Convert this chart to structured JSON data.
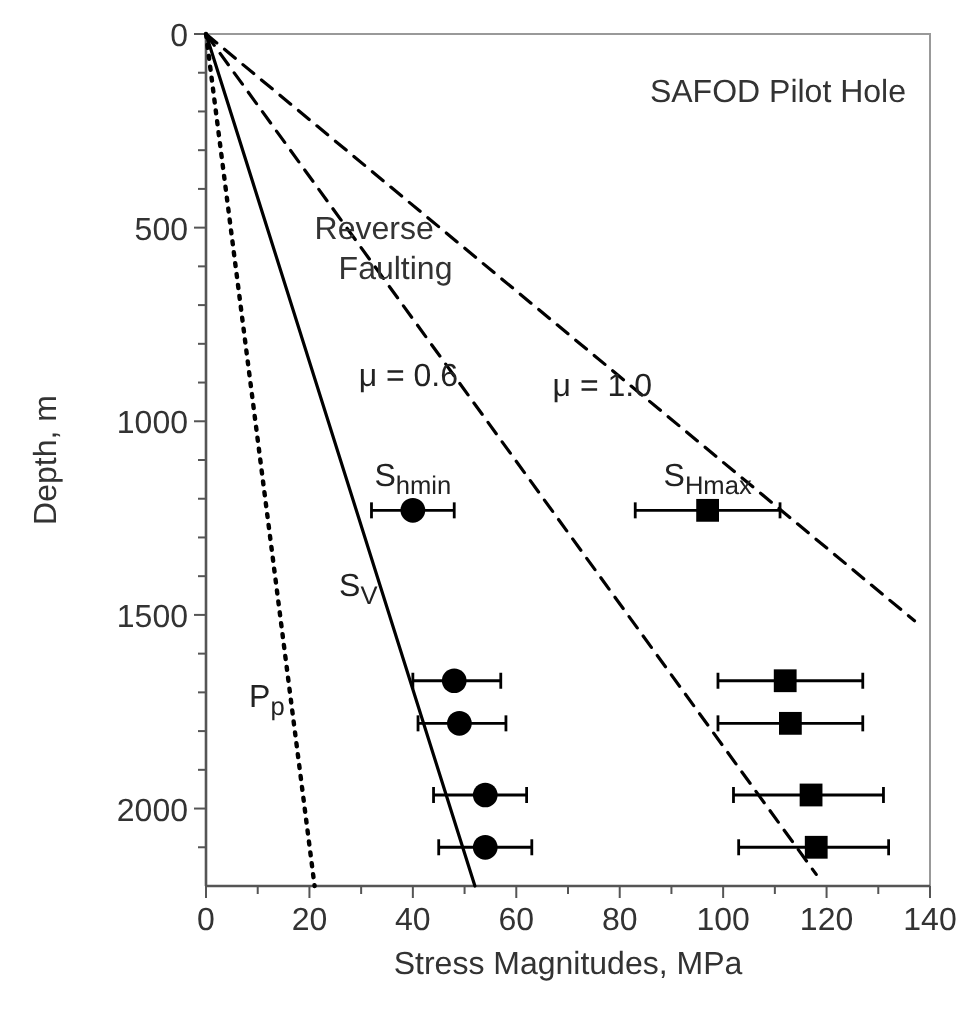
{
  "chart_data": {
    "type": "line",
    "title": "SAFOD Pilot Hole",
    "xlabel": "Stress Magnitudes, MPa",
    "ylabel": "Depth, m",
    "xlim": [
      0,
      140
    ],
    "ylim": [
      2200,
      0
    ],
    "xticks": [
      0,
      {
        "value": 10,
        "label": null
      },
      20,
      {
        "value": 30,
        "label": null
      },
      40,
      {
        "value": 50,
        "label": null
      },
      60,
      {
        "value": 70,
        "label": null
      },
      80,
      {
        "value": 90,
        "label": null
      },
      100,
      {
        "value": 110,
        "label": null
      },
      120,
      {
        "value": 130,
        "label": null
      },
      140
    ],
    "yticks": [
      0,
      {
        "value": 100,
        "label": null
      },
      {
        "value": 200,
        "label": null
      },
      {
        "value": 300,
        "label": null
      },
      {
        "value": 400,
        "label": null
      },
      500,
      {
        "value": 600,
        "label": null
      },
      {
        "value": 700,
        "label": null
      },
      {
        "value": 800,
        "label": null
      },
      {
        "value": 900,
        "label": null
      },
      1000,
      {
        "value": 1100,
        "label": null
      },
      {
        "value": 1200,
        "label": null
      },
      {
        "value": 1300,
        "label": null
      },
      {
        "value": 1400,
        "label": null
      },
      1500,
      {
        "value": 1600,
        "label": null
      },
      {
        "value": 1700,
        "label": null
      },
      {
        "value": 1800,
        "label": null
      },
      {
        "value": 1900,
        "label": null
      },
      2000,
      {
        "value": 2100,
        "label": null
      }
    ],
    "grid": false,
    "annotations": [
      "Reverse Faulting"
    ],
    "series": [
      {
        "name": "P$_{p}$",
        "line_style": "dotted",
        "color": "#000000",
        "x": [
          0,
          21
        ],
        "values": [
          0,
          2200
        ]
      },
      {
        "name": "S$_{V}$",
        "line_style": "solid",
        "color": "#000000",
        "x": [
          0,
          52
        ],
        "values": [
          0,
          2200
        ]
      },
      {
        "name": "μ = 0.6",
        "line_style": "dashed",
        "color": "#000000",
        "x": [
          0,
          118
        ],
        "values": [
          0,
          2170
        ]
      },
      {
        "name": "μ = 1.0",
        "line_style": "dashed",
        "color": "#000000",
        "x": [
          0,
          137
        ],
        "values": [
          0,
          1515
        ]
      },
      {
        "name": "S$_{hmin}$",
        "type": "scatter",
        "marker": "circle",
        "color": "#000000",
        "x": [
          40,
          48,
          49,
          54,
          54
        ],
        "values": [
          1230,
          1670,
          1780,
          1965,
          2100
        ],
        "xerrors": [
          [
            32,
            48
          ],
          [
            40,
            57
          ],
          [
            41,
            58
          ],
          [
            44,
            62
          ],
          [
            45,
            63
          ]
        ]
      },
      {
        "name": "S$_{Hmax}$",
        "type": "scatter",
        "marker": "square",
        "color": "#000000",
        "x": [
          97,
          112,
          113,
          117,
          118
        ],
        "values": [
          1230,
          1670,
          1780,
          1965,
          2100
        ],
        "xerrors": [
          [
            83,
            111
          ],
          [
            99,
            127
          ],
          [
            99,
            127
          ],
          [
            102,
            131
          ],
          [
            103,
            132
          ]
        ]
      }
    ]
  }
}
